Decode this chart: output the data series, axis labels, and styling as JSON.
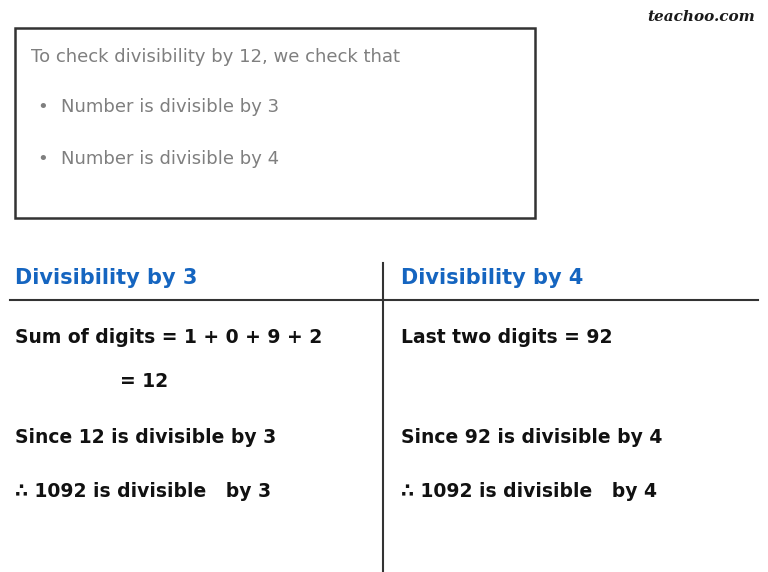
{
  "bg_color": "#ffffff",
  "teachoo_text": "teachoo.com",
  "teachoo_color": "#1a1a1a",
  "box_title": "To check divisibility by 12, we check that",
  "box_bullets": [
    "Number is divisible by 3",
    "Number is divisible by 4"
  ],
  "box_text_color": "#7f7f7f",
  "box_border_color": "#333333",
  "col1_header": "Divisibility by 3",
  "col2_header": "Divisibility by 4",
  "header_color": "#1565C0",
  "col1_lines": [
    "Sum of digits = 1 + 0 + 9 + 2",
    "= 12",
    "Since 12 is divisible by 3",
    "∴ 1092 is divisible   by 3"
  ],
  "col2_lines": [
    "Last two digits = 92",
    "",
    "Since 92 is divisible by 4",
    "∴ 1092 is divisible   by 4"
  ],
  "body_text_color": "#111111",
  "divider_color": "#333333",
  "font_size_title": 13,
  "font_size_header": 15,
  "font_size_body": 13.5,
  "font_size_teachoo": 11
}
